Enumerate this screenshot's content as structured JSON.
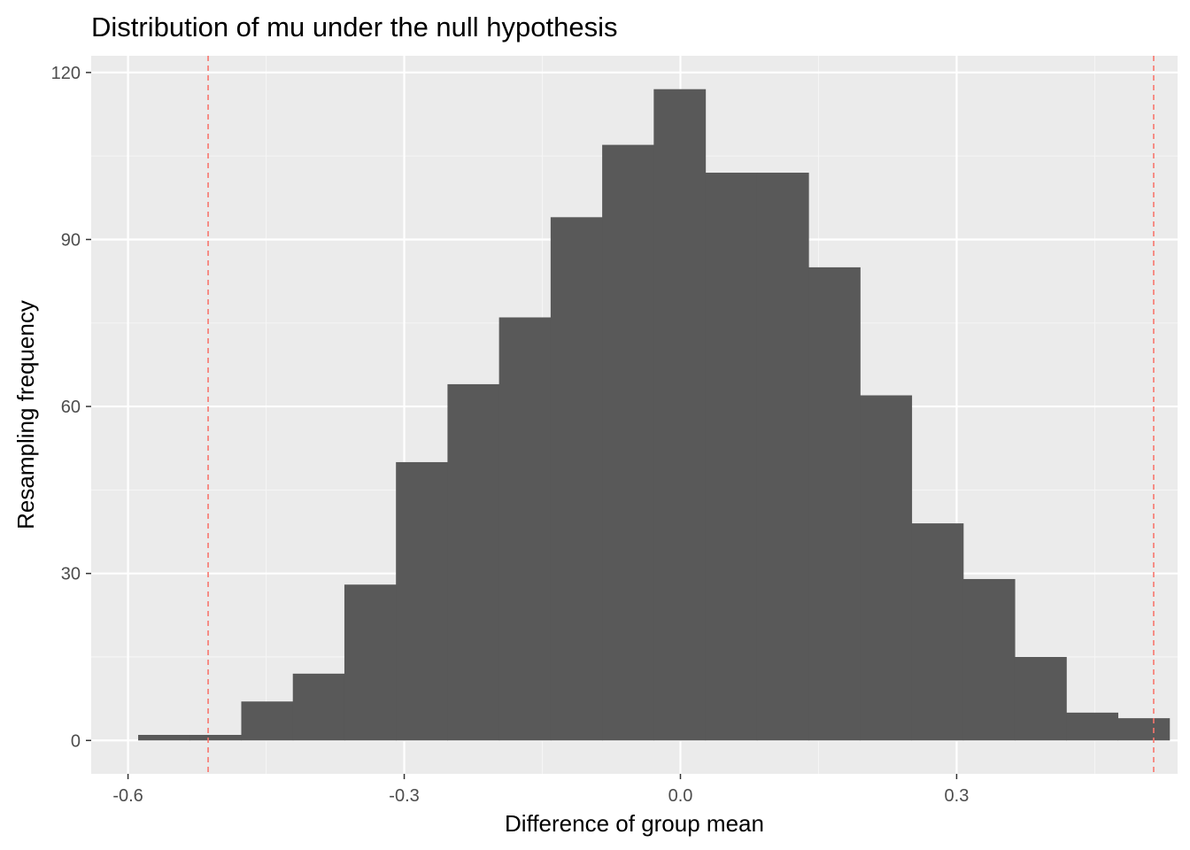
{
  "chart_data": {
    "type": "bar",
    "title": "Distribution of mu under the null hypothesis",
    "xlabel": "Difference of group mean",
    "ylabel": "Resampling frequency",
    "x_ticks": [
      -0.6,
      -0.3,
      0.0,
      0.3
    ],
    "x_tick_labels": [
      "-0.6",
      "-0.3",
      "0.0",
      "0.3"
    ],
    "y_ticks": [
      0,
      30,
      60,
      90,
      120
    ],
    "y_tick_labels": [
      "0",
      "30",
      "60",
      "90",
      "120"
    ],
    "xlim": [
      -0.64,
      0.54
    ],
    "ylim": [
      -6,
      123
    ],
    "grid": true,
    "legend": "none",
    "bin_width": 0.056,
    "bins": [
      {
        "x_start": -0.589,
        "x_end": -0.533,
        "count": 1
      },
      {
        "x_start": -0.533,
        "x_end": -0.477,
        "count": 1
      },
      {
        "x_start": -0.477,
        "x_end": -0.421,
        "count": 7
      },
      {
        "x_start": -0.421,
        "x_end": -0.365,
        "count": 12
      },
      {
        "x_start": -0.365,
        "x_end": -0.309,
        "count": 28
      },
      {
        "x_start": -0.309,
        "x_end": -0.253,
        "count": 50
      },
      {
        "x_start": -0.253,
        "x_end": -0.197,
        "count": 64
      },
      {
        "x_start": -0.197,
        "x_end": -0.141,
        "count": 76
      },
      {
        "x_start": -0.141,
        "x_end": -0.085,
        "count": 94
      },
      {
        "x_start": -0.085,
        "x_end": -0.029,
        "count": 107
      },
      {
        "x_start": -0.029,
        "x_end": 0.027,
        "count": 117
      },
      {
        "x_start": 0.027,
        "x_end": 0.083,
        "count": 102
      },
      {
        "x_start": 0.083,
        "x_end": 0.139,
        "count": 102
      },
      {
        "x_start": 0.139,
        "x_end": 0.195,
        "count": 85
      },
      {
        "x_start": 0.195,
        "x_end": 0.251,
        "count": 62
      },
      {
        "x_start": 0.251,
        "x_end": 0.307,
        "count": 39
      },
      {
        "x_start": 0.307,
        "x_end": 0.363,
        "count": 29
      },
      {
        "x_start": 0.363,
        "x_end": 0.419,
        "count": 15
      },
      {
        "x_start": 0.419,
        "x_end": 0.475,
        "count": 5
      },
      {
        "x_start": 0.475,
        "x_end": 0.531,
        "count": 4
      }
    ],
    "reference_lines": [
      {
        "x": -0.513,
        "style": "dashed",
        "color": "#f8766d"
      },
      {
        "x": 0.514,
        "style": "dashed",
        "color": "#f8766d"
      }
    ],
    "colors": {
      "bar": "#595959",
      "panel": "#ebebeb",
      "grid_major": "#ffffff",
      "grid_minor": "#f5f5f5",
      "reference_line": "#f8766d"
    }
  }
}
